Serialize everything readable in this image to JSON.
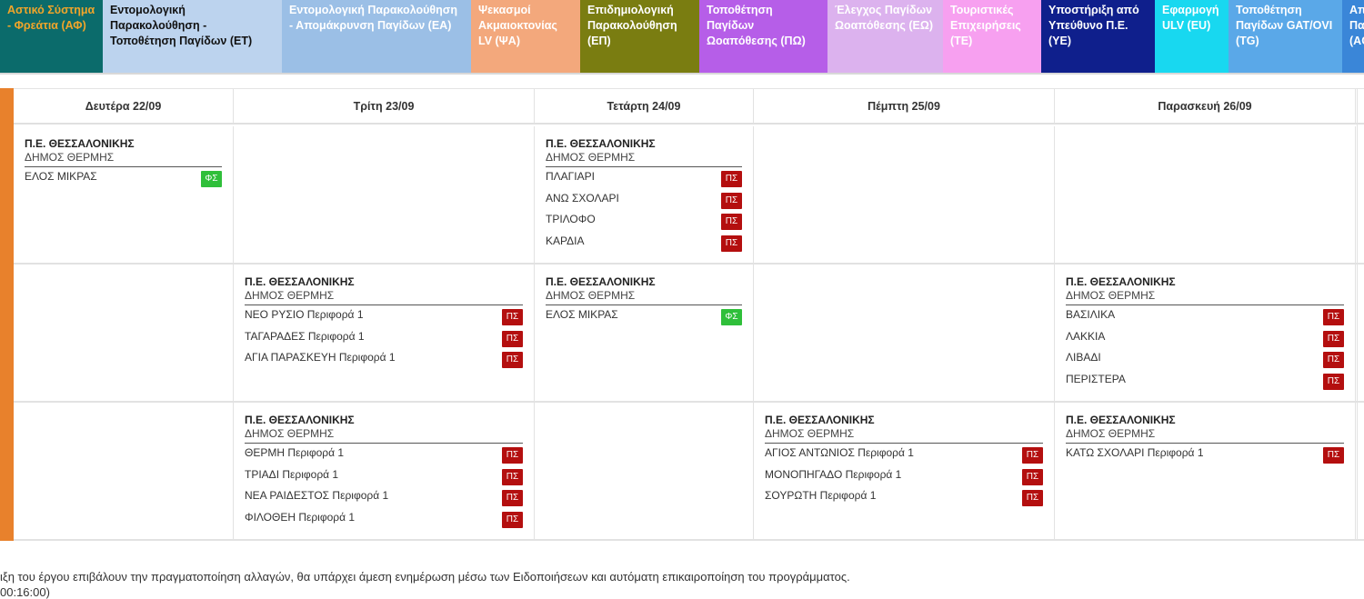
{
  "legend": [
    {
      "label": "Αστικό Σύστημα - Φρεάτια (ΑΦ)",
      "bg": "#0b6b6b",
      "fg": "#f0a52a"
    },
    {
      "label": "Εντομολογική Παρακολούθηση - Τοποθέτηση Παγίδων (ΕΤ)",
      "bg": "#bcd3ee",
      "fg": "#111111"
    },
    {
      "label": "Εντομολογική Παρακολούθηση - Απομάκρυνση Παγίδων (ΕΑ)",
      "bg": "#9bbfe6",
      "fg": "#ffffff"
    },
    {
      "label": "Ψεκασμοί Ακμαιοκτονίας LV (ΨΑ)",
      "bg": "#f3a87c",
      "fg": "#ffffff"
    },
    {
      "label": "Επιδημιολογική Παρακολούθηση (ΕΠ)",
      "bg": "#7a7d11",
      "fg": "#ffffff"
    },
    {
      "label": "Τοποθέτηση Παγίδων Ωοαπόθεσης (ΠΩ)",
      "bg": "#b65ee8",
      "fg": "#ffffff"
    },
    {
      "label": "Έλεγχος Παγίδων Ωοαπόθεσης (ΕΩ)",
      "bg": "#dcb2ee",
      "fg": "#ffffff"
    },
    {
      "label": "Τουριστικές Επιχειρήσεις (ΤΕ)",
      "bg": "#f7a0f0",
      "fg": "#ffffff"
    },
    {
      "label": "Υποστήριξη από Υπεύθυνο Π.Ε. (ΥΕ)",
      "bg": "#0f1f8c",
      "fg": "#ffffff"
    },
    {
      "label": "Εφαρμογή ULV (EU)",
      "bg": "#18d8f0",
      "fg": "#ffffff"
    },
    {
      "label": "Τοποθέτηση Παγίδων GAT/OVI (TG)",
      "bg": "#5aa8e8",
      "fg": "#ffffff"
    },
    {
      "label": "Απομάκρυνση Παγίδων (AG)",
      "bg": "#3a86d8",
      "fg": "#ffffff"
    }
  ],
  "days": [
    "Δευτέρα 22/09",
    "Τρίτη 23/09",
    "Τετάρτη 24/09",
    "Πέμπτη 25/09",
    "Παρασκευή 26/09"
  ],
  "entries": [
    {
      "row": 0,
      "col": 0,
      "pe": "Π.Ε. ΘΕΣΣΑΛΟΝΙΚΗΣ",
      "dimos": "ΔΗΜΟΣ ΘΕΡΜΗΣ",
      "locations": [
        {
          "name": "ΕΛΟΣ ΜΙΚΡΑΣ",
          "code": "ΦΣ",
          "type": "fs"
        }
      ]
    },
    {
      "row": 0,
      "col": 2,
      "pe": "Π.Ε. ΘΕΣΣΑΛΟΝΙΚΗΣ",
      "dimos": "ΔΗΜΟΣ ΘΕΡΜΗΣ",
      "locations": [
        {
          "name": "ΠΛΑΓΙΑΡΙ",
          "code": "ΠΣ",
          "type": "ps"
        },
        {
          "name": "ΑΝΩ ΣΧΟΛΑΡΙ",
          "code": "ΠΣ",
          "type": "ps"
        },
        {
          "name": "ΤΡΙΛΟΦΟ",
          "code": "ΠΣ",
          "type": "ps"
        },
        {
          "name": "ΚΑΡΔΙΑ",
          "code": "ΠΣ",
          "type": "ps"
        }
      ]
    },
    {
      "row": 1,
      "col": 1,
      "pe": "Π.Ε. ΘΕΣΣΑΛΟΝΙΚΗΣ",
      "dimos": "ΔΗΜΟΣ ΘΕΡΜΗΣ",
      "locations": [
        {
          "name": "ΝΕΟ ΡΥΣΙΟ Περιφορά 1",
          "code": "ΠΣ",
          "type": "ps"
        },
        {
          "name": "ΤΑΓΑΡΑΔΕΣ Περιφορά 1",
          "code": "ΠΣ",
          "type": "ps"
        },
        {
          "name": "ΑΓΙΑ ΠΑΡΑΣΚΕΥΗ Περιφορά 1",
          "code": "ΠΣ",
          "type": "ps"
        }
      ]
    },
    {
      "row": 1,
      "col": 2,
      "pe": "Π.Ε. ΘΕΣΣΑΛΟΝΙΚΗΣ",
      "dimos": "ΔΗΜΟΣ ΘΕΡΜΗΣ",
      "locations": [
        {
          "name": "ΕΛΟΣ ΜΙΚΡΑΣ",
          "code": "ΦΣ",
          "type": "fs"
        }
      ]
    },
    {
      "row": 1,
      "col": 4,
      "pe": "Π.Ε. ΘΕΣΣΑΛΟΝΙΚΗΣ",
      "dimos": "ΔΗΜΟΣ ΘΕΡΜΗΣ",
      "locations": [
        {
          "name": "ΒΑΣΙΛΙΚΑ",
          "code": "ΠΣ",
          "type": "ps"
        },
        {
          "name": "ΛΑΚΚΙΑ",
          "code": "ΠΣ",
          "type": "ps"
        },
        {
          "name": "ΛΙΒΑΔΙ",
          "code": "ΠΣ",
          "type": "ps"
        },
        {
          "name": "ΠΕΡΙΣΤΕΡΑ",
          "code": "ΠΣ",
          "type": "ps"
        }
      ]
    },
    {
      "row": 2,
      "col": 1,
      "pe": "Π.Ε. ΘΕΣΣΑΛΟΝΙΚΗΣ",
      "dimos": "ΔΗΜΟΣ ΘΕΡΜΗΣ",
      "locations": [
        {
          "name": "ΘΕΡΜΗ Περιφορά 1",
          "code": "ΠΣ",
          "type": "ps"
        },
        {
          "name": "ΤΡΙΑΔΙ Περιφορά 1",
          "code": "ΠΣ",
          "type": "ps"
        },
        {
          "name": "ΝΕΑ ΡΑΙΔΕΣΤΟΣ Περιφορά 1",
          "code": "ΠΣ",
          "type": "ps"
        },
        {
          "name": "ΦΙΛΟΘΕΗ Περιφορά 1",
          "code": "ΠΣ",
          "type": "ps"
        }
      ]
    },
    {
      "row": 2,
      "col": 3,
      "pe": "Π.Ε. ΘΕΣΣΑΛΟΝΙΚΗΣ",
      "dimos": "ΔΗΜΟΣ ΘΕΡΜΗΣ",
      "locations": [
        {
          "name": "ΑΓΙΟΣ ΑΝΤΩΝΙΟΣ Περιφορά 1",
          "code": "ΠΣ",
          "type": "ps"
        },
        {
          "name": "ΜΟΝΟΠΗΓΑΔΟ Περιφορά 1",
          "code": "ΠΣ",
          "type": "ps"
        },
        {
          "name": "ΣΟΥΡΩΤΗ Περιφορά 1",
          "code": "ΠΣ",
          "type": "ps"
        }
      ]
    },
    {
      "row": 2,
      "col": 4,
      "pe": "Π.Ε. ΘΕΣΣΑΛΟΝΙΚΗΣ",
      "dimos": "ΔΗΜΟΣ ΘΕΡΜΗΣ",
      "locations": [
        {
          "name": "ΚΑΤΩ ΣΧΟΛΑΡΙ Περιφορά 1",
          "code": "ΠΣ",
          "type": "ps"
        }
      ]
    }
  ],
  "footer": {
    "notice": "ιξη του έργου επιβάλουν την πραγματοποίηση αλλαγών, θα υπάρχει άμεση ενημέρωση μέσω των Ειδοποιήσεων και αυτόματη επικαιροποίηση του προγράμματος.",
    "partial": "00:16:00)"
  }
}
